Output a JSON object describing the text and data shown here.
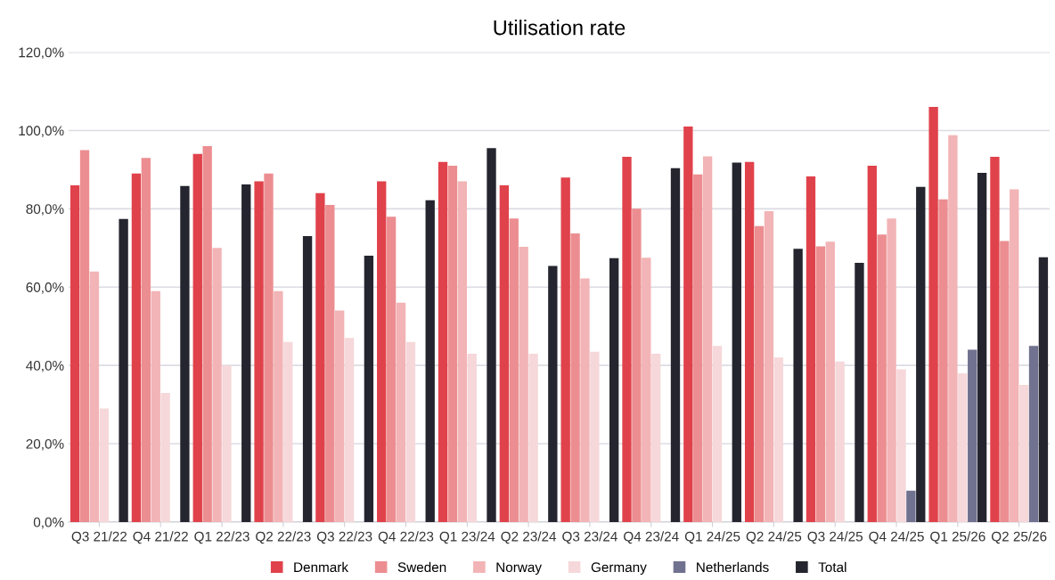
{
  "chart_data": {
    "type": "bar",
    "title": "Utilisation rate",
    "categories": [
      "Q3 21/22",
      "Q4 21/22",
      "Q1 22/23",
      "Q2 22/23",
      "Q3 22/23",
      "Q4 22/23",
      "Q1 23/24",
      "Q2 23/24",
      "Q3 23/24",
      "Q4 23/24",
      "Q1 24/25",
      "Q2 24/25",
      "Q3 24/25",
      "Q4 24/25",
      "Q1 25/26",
      "Q2 25/26"
    ],
    "series": [
      {
        "name": "Denmark",
        "color": "#e0424b",
        "values": [
          86,
          89,
          94,
          87,
          84,
          87,
          92,
          86,
          88,
          93.3,
          101,
          92,
          88.3,
          91,
          106,
          93.3
        ]
      },
      {
        "name": "Sweden",
        "color": "#ec8e91",
        "values": [
          95,
          93,
          96,
          89,
          81,
          78,
          91,
          77.5,
          73.7,
          80,
          88.8,
          75.6,
          70.4,
          73.4,
          82.4,
          71.8
        ]
      },
      {
        "name": "Norway",
        "color": "#f2b4b6",
        "values": [
          64,
          59,
          70,
          59,
          54,
          56,
          87,
          70.3,
          62.2,
          67.5,
          93.4,
          79.4,
          71.6,
          77.5,
          98.8,
          85
        ]
      },
      {
        "name": "Germany",
        "color": "#f6d8da",
        "values": [
          29,
          33,
          40,
          46,
          47,
          46,
          43,
          43,
          43.5,
          43,
          45,
          42,
          41,
          39,
          38,
          35
        ]
      },
      {
        "name": "Netherlands",
        "color": "#70728f",
        "values": [
          null,
          null,
          null,
          null,
          null,
          null,
          null,
          null,
          null,
          null,
          null,
          null,
          null,
          8,
          44,
          45
        ]
      },
      {
        "name": "Total",
        "color": "#25252f",
        "values": [
          77.4,
          85.8,
          86.2,
          73,
          68,
          82.2,
          95.5,
          65.4,
          67.4,
          90.4,
          91.8,
          69.8,
          66.2,
          85.6,
          89.2,
          67.6
        ]
      }
    ],
    "ylim": [
      0,
      120
    ],
    "yticks": [
      {
        "value": 0,
        "label": "0,0%"
      },
      {
        "value": 20,
        "label": "20,0%"
      },
      {
        "value": 40,
        "label": "40,0%"
      },
      {
        "value": 60,
        "label": "60,0%"
      },
      {
        "value": 80,
        "label": "80,0%"
      },
      {
        "value": 100,
        "label": "100,0%"
      },
      {
        "value": 120,
        "label": "120,0%"
      }
    ],
    "grid": "y",
    "legend": "bottom"
  }
}
